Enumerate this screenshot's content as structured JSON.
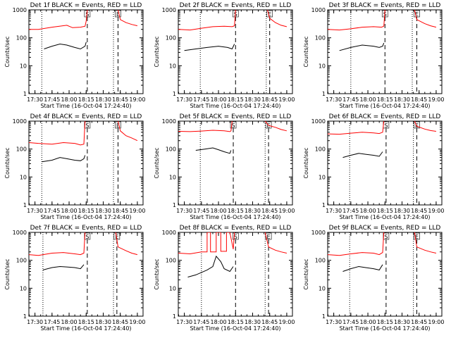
{
  "chart_data": [
    {
      "type": "line",
      "title": "Det 1f BLACK = Events, RED = LLD",
      "xlabel": "Start Time (16-Oct-04 17:24:40)",
      "ylabel": "Counts/sec",
      "y_scale": "log",
      "ylim": [
        1,
        1000
      ],
      "xlim": [
        "17:24:40",
        "19:05:00"
      ],
      "x_tick_labels": [
        "17:30",
        "17:45",
        "18:00",
        "18:15",
        "18:30",
        "18:45",
        "19:00"
      ],
      "y_tick_labels": [
        "1",
        "10",
        "100",
        "1000"
      ],
      "markers": [
        {
          "time": "17:36",
          "style": "dotted",
          "label": ""
        },
        {
          "time": "18:16",
          "style": "dashed",
          "label": "S"
        },
        {
          "time": "18:39",
          "style": "dotted",
          "label": ""
        },
        {
          "time": "18:43",
          "style": "dashed",
          "label": "E"
        }
      ],
      "series": [
        {
          "color": "#ff0000",
          "x": [
            "17:24:40",
            "17:33",
            "17:45",
            "17:58",
            "18:03",
            "18:10",
            "18:14",
            "18:15",
            "18:16"
          ],
          "y": [
            200,
            200,
            240,
            280,
            230,
            240,
            260,
            400,
            1000
          ]
        },
        {
          "color": "#ff0000",
          "x": [
            "18:43",
            "18:45",
            "18:50",
            "18:55",
            "19:00"
          ],
          "y": [
            1000,
            450,
            350,
            300,
            270
          ]
        },
        {
          "color": "#000000",
          "x": [
            "17:38",
            "17:45",
            "17:52",
            "17:58",
            "18:05",
            "18:10",
            "18:14",
            "18:15"
          ],
          "y": [
            40,
            50,
            60,
            55,
            45,
            40,
            50,
            70
          ]
        }
      ]
    },
    {
      "type": "line",
      "title": "Det 2f BLACK = Events, RED = LLD",
      "xlabel": "Start Time (16-Oct-04 17:24:40)",
      "ylabel": "Counts/sec",
      "y_scale": "log",
      "ylim": [
        1,
        1000
      ],
      "xlim": [
        "17:24:40",
        "19:05:00"
      ],
      "x_tick_labels": [
        "17:30",
        "17:45",
        "18:00",
        "18:15",
        "18:30",
        "18:45",
        "19:00"
      ],
      "y_tick_labels": [
        "1",
        "10",
        "100",
        "1000"
      ],
      "markers": [
        {
          "time": "17:44",
          "style": "dotted",
          "label": ""
        },
        {
          "time": "18:15",
          "style": "dashed",
          "label": "S"
        },
        {
          "time": "18:42",
          "style": "dotted",
          "label": ""
        },
        {
          "time": "18:45",
          "style": "dashed",
          "label": "E"
        }
      ],
      "series": [
        {
          "color": "#ff0000",
          "x": [
            "17:24:40",
            "17:35",
            "17:45",
            "17:55",
            "18:05",
            "18:12",
            "18:14",
            "18:15"
          ],
          "y": [
            200,
            190,
            220,
            250,
            260,
            250,
            270,
            1000
          ]
        },
        {
          "color": "#ff0000",
          "x": [
            "18:43",
            "18:45",
            "18:50",
            "18:55",
            "19:00"
          ],
          "y": [
            1000,
            500,
            350,
            280,
            250
          ]
        },
        {
          "color": "#000000",
          "x": [
            "17:30",
            "17:40",
            "17:50",
            "18:00",
            "18:08",
            "18:12",
            "18:14"
          ],
          "y": [
            35,
            40,
            45,
            50,
            45,
            40,
            60
          ]
        }
      ]
    },
    {
      "type": "line",
      "title": "Det 3f BLACK = Events, RED = LLD",
      "xlabel": "Start Time (16-Oct-04 17:24:40)",
      "ylabel": "Counts/sec",
      "y_scale": "log",
      "ylim": [
        1,
        1000
      ],
      "xlim": [
        "17:24:40",
        "19:05:00"
      ],
      "x_tick_labels": [
        "17:30",
        "17:45",
        "18:00",
        "18:15",
        "18:30",
        "18:45",
        "19:00"
      ],
      "y_tick_labels": [
        "1",
        "10",
        "100",
        "1000"
      ],
      "markers": [
        {
          "time": "17:45",
          "style": "dotted",
          "label": ""
        },
        {
          "time": "18:15",
          "style": "dashed",
          "label": "S"
        },
        {
          "time": "18:39",
          "style": "dotted",
          "label": ""
        },
        {
          "time": "18:43",
          "style": "dashed",
          "label": "E"
        }
      ],
      "series": [
        {
          "color": "#ff0000",
          "x": [
            "17:24:40",
            "17:35",
            "17:45",
            "17:55",
            "18:05",
            "18:12",
            "18:14",
            "18:15"
          ],
          "y": [
            200,
            190,
            210,
            240,
            250,
            240,
            260,
            1000
          ]
        },
        {
          "color": "#ff0000",
          "x": [
            "18:41",
            "18:43",
            "18:50",
            "18:55",
            "19:00"
          ],
          "y": [
            1000,
            450,
            320,
            270,
            240
          ]
        },
        {
          "color": "#000000",
          "x": [
            "17:35",
            "17:45",
            "17:55",
            "18:05",
            "18:10",
            "18:13",
            "18:14"
          ],
          "y": [
            35,
            45,
            55,
            50,
            45,
            50,
            65
          ]
        }
      ]
    },
    {
      "type": "line",
      "title": "Det 4f BLACK = Events, RED = LLD",
      "xlabel": "Start Time (16-Oct-04 17:24:40)",
      "ylabel": "Counts/sec",
      "y_scale": "log",
      "ylim": [
        1,
        1000
      ],
      "xlim": [
        "17:24:40",
        "19:05:00"
      ],
      "x_tick_labels": [
        "17:30",
        "17:45",
        "18:00",
        "18:15",
        "18:30",
        "18:45",
        "19:00"
      ],
      "y_tick_labels": [
        "1",
        "10",
        "100",
        "1000"
      ],
      "markers": [
        {
          "time": "17:36",
          "style": "dotted",
          "label": ""
        },
        {
          "time": "18:16",
          "style": "dashed",
          "label": "S"
        },
        {
          "time": "18:39",
          "style": "dotted",
          "label": ""
        },
        {
          "time": "18:43",
          "style": "dashed",
          "label": "E"
        }
      ],
      "series": [
        {
          "color": "#ff0000",
          "x": [
            "17:24:40",
            "17:33",
            "17:45",
            "17:55",
            "18:05",
            "18:10",
            "18:13",
            "18:14"
          ],
          "y": [
            170,
            160,
            150,
            170,
            160,
            140,
            150,
            1000
          ]
        },
        {
          "color": "#ff0000",
          "x": [
            "18:43",
            "18:45",
            "18:50",
            "18:55",
            "19:00"
          ],
          "y": [
            1000,
            450,
            300,
            250,
            200
          ]
        },
        {
          "color": "#000000",
          "x": [
            "17:36",
            "17:45",
            "17:52",
            "17:58",
            "18:05",
            "18:10",
            "18:13",
            "18:14"
          ],
          "y": [
            35,
            40,
            50,
            45,
            40,
            38,
            45,
            60
          ]
        }
      ]
    },
    {
      "type": "line",
      "title": "Det 5f BLACK = Events, RED = LLD",
      "xlabel": "Start Time (16-Oct-04 17:24:40)",
      "ylabel": "Counts/sec",
      "y_scale": "log",
      "ylim": [
        1,
        1000
      ],
      "xlim": [
        "17:24:40",
        "19:05:00"
      ],
      "x_tick_labels": [
        "17:30",
        "17:45",
        "18:00",
        "18:15",
        "18:30",
        "18:45",
        "19:00"
      ],
      "y_tick_labels": [
        "1",
        "10",
        "100",
        "1000"
      ],
      "markers": [
        {
          "time": "17:44",
          "style": "dotted",
          "label": ""
        },
        {
          "time": "18:13",
          "style": "dashed",
          "label": "S"
        },
        {
          "time": "18:41",
          "style": "dotted",
          "label": ""
        },
        {
          "time": "18:44",
          "style": "dashed",
          "label": "E"
        }
      ],
      "series": [
        {
          "color": "#ff0000",
          "x": [
            "17:24:40",
            "17:35",
            "17:45",
            "17:55",
            "18:05",
            "18:10",
            "18:11",
            "18:12"
          ],
          "y": [
            430,
            420,
            440,
            470,
            450,
            420,
            450,
            1000
          ]
        },
        {
          "color": "#ff0000",
          "x": [
            "18:41",
            "18:44",
            "18:50",
            "18:55",
            "19:00"
          ],
          "y": [
            1000,
            700,
            600,
            500,
            450
          ]
        },
        {
          "color": "#000000",
          "x": [
            "17:40",
            "17:48",
            "17:55",
            "18:00",
            "18:05",
            "18:10",
            "18:11"
          ],
          "y": [
            90,
            100,
            110,
            95,
            80,
            70,
            90
          ]
        }
      ]
    },
    {
      "type": "line",
      "title": "Det 6f BLACK = Events, RED = LLD",
      "xlabel": "Start Time (16-Oct-04 17:24:40)",
      "ylabel": "Counts/sec",
      "y_scale": "log",
      "ylim": [
        1,
        1000
      ],
      "xlim": [
        "17:24:40",
        "19:05:00"
      ],
      "x_tick_labels": [
        "17:30",
        "17:45",
        "18:00",
        "18:15",
        "18:30",
        "18:45",
        "19:00"
      ],
      "y_tick_labels": [
        "1",
        "10",
        "100",
        "1000"
      ],
      "markers": [
        {
          "time": "17:44",
          "style": "dotted",
          "label": ""
        },
        {
          "time": "18:16",
          "style": "dashed",
          "label": "S"
        },
        {
          "time": "18:40",
          "style": "dotted",
          "label": ""
        },
        {
          "time": "18:43",
          "style": "dashed",
          "label": "E"
        }
      ],
      "series": [
        {
          "color": "#ff0000",
          "x": [
            "17:24:40",
            "17:35",
            "17:45",
            "17:55",
            "18:05",
            "18:10",
            "18:13",
            "18:14"
          ],
          "y": [
            350,
            340,
            370,
            400,
            380,
            360,
            400,
            1000
          ]
        },
        {
          "color": "#ff0000",
          "x": [
            "18:41",
            "18:43",
            "18:50",
            "18:55",
            "19:00"
          ],
          "y": [
            1000,
            650,
            520,
            460,
            430
          ]
        },
        {
          "color": "#000000",
          "x": [
            "17:38",
            "17:45",
            "17:52",
            "17:58",
            "18:05",
            "18:10",
            "18:13"
          ],
          "y": [
            50,
            60,
            70,
            65,
            60,
            55,
            80
          ]
        }
      ]
    },
    {
      "type": "line",
      "title": "Det 7f BLACK = Events, RED = LLD",
      "xlabel": "Start Time (16-Oct-04 17:24:40)",
      "ylabel": "Counts/sec",
      "y_scale": "log",
      "ylim": [
        1,
        1000
      ],
      "xlim": [
        "17:24:40",
        "19:05:00"
      ],
      "x_tick_labels": [
        "17:30",
        "17:45",
        "18:00",
        "18:15",
        "18:30",
        "18:45",
        "19:00"
      ],
      "y_tick_labels": [
        "1",
        "10",
        "100",
        "1000"
      ],
      "markers": [
        {
          "time": "17:37",
          "style": "dotted",
          "label": ""
        },
        {
          "time": "18:16",
          "style": "dashed",
          "label": "S"
        },
        {
          "time": "18:39",
          "style": "dotted",
          "label": ""
        },
        {
          "time": "18:42",
          "style": "dashed",
          "label": "E"
        }
      ],
      "series": [
        {
          "color": "#ff0000",
          "x": [
            "17:24:40",
            "17:33",
            "17:45",
            "17:55",
            "18:05",
            "18:10",
            "18:13",
            "18:14"
          ],
          "y": [
            160,
            150,
            180,
            190,
            170,
            160,
            180,
            1000
          ]
        },
        {
          "color": "#ff0000",
          "x": [
            "18:41",
            "18:43",
            "18:50",
            "18:55",
            "19:00"
          ],
          "y": [
            1000,
            300,
            220,
            180,
            160
          ]
        },
        {
          "color": "#000000",
          "x": [
            "17:37",
            "17:45",
            "17:52",
            "17:58",
            "18:05",
            "18:10",
            "18:13"
          ],
          "y": [
            45,
            55,
            60,
            58,
            55,
            50,
            70
          ]
        }
      ]
    },
    {
      "type": "line",
      "title": "Det 8f BLACK = Events, RED = LLD",
      "xlabel": "Start Time (16-Oct-04 17:24:40)",
      "ylabel": "Counts/sec",
      "y_scale": "log",
      "ylim": [
        1,
        1000
      ],
      "xlim": [
        "17:24:40",
        "19:05:00"
      ],
      "x_tick_labels": [
        "17:30",
        "17:45",
        "18:00",
        "18:15",
        "18:30",
        "18:45",
        "19:00"
      ],
      "y_tick_labels": [
        "1",
        "10",
        "100",
        "1000"
      ],
      "markers": [
        {
          "time": "17:45",
          "style": "dotted",
          "label": ""
        },
        {
          "time": "18:15",
          "style": "dashed",
          "label": "S"
        },
        {
          "time": "18:41",
          "style": "dotted",
          "label": ""
        },
        {
          "time": "18:44",
          "style": "dashed",
          "label": "E"
        }
      ],
      "series": [
        {
          "color": "#ff0000",
          "x": [
            "17:24:40",
            "17:35",
            "17:45",
            "17:50",
            "17:50",
            "17:53",
            "17:53",
            "17:58",
            "17:58",
            "18:02",
            "18:02",
            "18:07",
            "18:07",
            "18:10",
            "18:13",
            "18:14"
          ],
          "y": [
            180,
            170,
            200,
            200,
            1000,
            1000,
            200,
            200,
            1000,
            1000,
            210,
            210,
            1000,
            1000,
            250,
            1000
          ]
        },
        {
          "color": "#ff0000",
          "x": [
            "18:41",
            "18:44",
            "18:50",
            "18:55",
            "19:00"
          ],
          "y": [
            1000,
            300,
            230,
            200,
            180
          ]
        },
        {
          "color": "#000000",
          "x": [
            "17:33",
            "17:40",
            "17:50",
            "17:55",
            "17:58",
            "18:02",
            "18:05",
            "18:10",
            "18:13"
          ],
          "y": [
            25,
            30,
            45,
            60,
            140,
            90,
            50,
            40,
            60
          ]
        }
      ]
    },
    {
      "type": "line",
      "title": "Det 9f BLACK = Events, RED = LLD",
      "xlabel": "Start Time (16-Oct-04 17:24:40)",
      "ylabel": "Counts/sec",
      "y_scale": "log",
      "ylim": [
        1,
        1000
      ],
      "xlim": [
        "17:24:40",
        "19:05:00"
      ],
      "x_tick_labels": [
        "17:30",
        "17:45",
        "18:00",
        "18:15",
        "18:30",
        "18:45",
        "19:00"
      ],
      "y_tick_labels": [
        "1",
        "10",
        "100",
        "1000"
      ],
      "markers": [
        {
          "time": "17:44",
          "style": "dotted",
          "label": ""
        },
        {
          "time": "18:16",
          "style": "dashed",
          "label": "S"
        },
        {
          "time": "18:40",
          "style": "dotted",
          "label": ""
        },
        {
          "time": "18:43",
          "style": "dashed",
          "label": "E"
        }
      ],
      "series": [
        {
          "color": "#ff0000",
          "x": [
            "17:24:40",
            "17:35",
            "17:45",
            "17:55",
            "18:05",
            "18:10",
            "18:13",
            "18:14"
          ],
          "y": [
            160,
            150,
            170,
            190,
            180,
            160,
            190,
            1000
          ]
        },
        {
          "color": "#ff0000",
          "x": [
            "18:41",
            "18:43",
            "18:50",
            "18:55",
            "19:00"
          ],
          "y": [
            1000,
            300,
            230,
            200,
            180
          ]
        },
        {
          "color": "#000000",
          "x": [
            "17:38",
            "17:45",
            "17:52",
            "17:58",
            "18:05",
            "18:10",
            "18:13"
          ],
          "y": [
            40,
            50,
            60,
            55,
            50,
            45,
            70
          ]
        }
      ]
    }
  ]
}
